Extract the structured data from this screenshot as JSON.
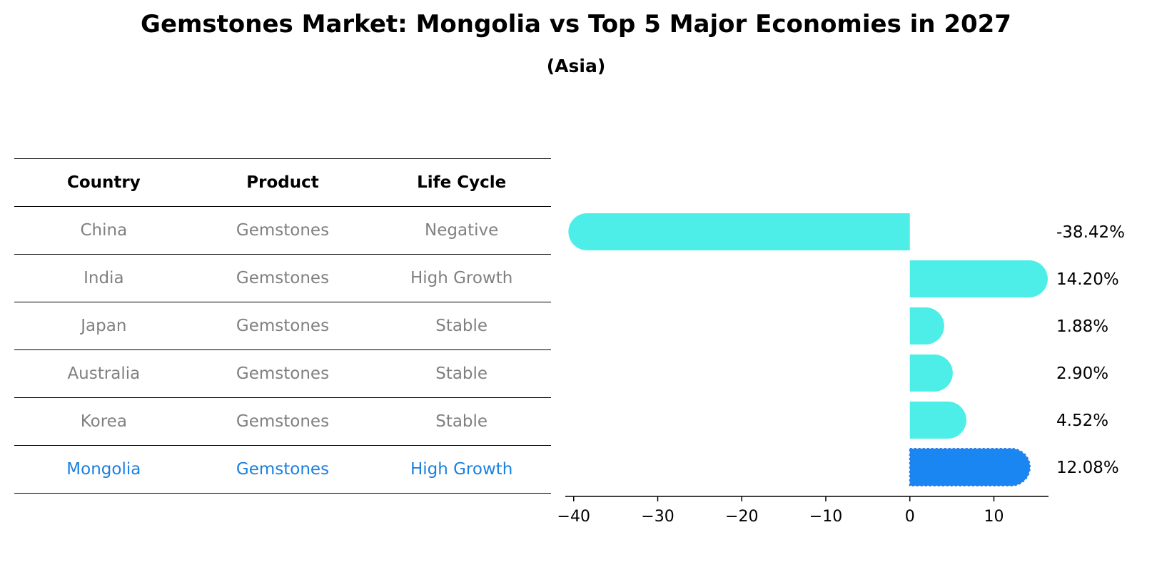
{
  "title": "Gemstones Market: Mongolia vs Top 5 Major Economies in 2027",
  "subtitle": "(Asia)",
  "table": {
    "headers": [
      "Country",
      "Product",
      "Life Cycle"
    ],
    "rows": [
      {
        "country": "China",
        "product": "Gemstones",
        "life_cycle": "Negative"
      },
      {
        "country": "India",
        "product": "Gemstones",
        "life_cycle": "High Growth"
      },
      {
        "country": "Japan",
        "product": "Gemstones",
        "life_cycle": "Stable"
      },
      {
        "country": "Australia",
        "product": "Gemstones",
        "life_cycle": "Stable"
      },
      {
        "country": "Korea",
        "product": "Gemstones",
        "life_cycle": "Stable"
      },
      {
        "country": "Mongolia",
        "product": "Gemstones",
        "life_cycle": "High Growth"
      }
    ]
  },
  "chart_data": {
    "type": "bar",
    "orientation": "horizontal",
    "categories": [
      "China",
      "India",
      "Japan",
      "Australia",
      "Korea",
      "Mongolia"
    ],
    "values": [
      -38.42,
      14.2,
      1.88,
      2.9,
      4.52,
      12.08
    ],
    "value_labels": [
      "-38.42%",
      "14.20%",
      "1.88%",
      "2.90%",
      "4.52%",
      "12.08%"
    ],
    "xticks": [
      -40,
      -30,
      -20,
      -10,
      0,
      10
    ],
    "xtick_labels": [
      "−40",
      "−30",
      "−20",
      "−10",
      "0",
      "10"
    ],
    "xlim": [
      -41,
      16.5
    ],
    "grid": false,
    "highlight_category": "Mongolia",
    "colors": {
      "default": "#4deee8",
      "highlight": "#1a86f2",
      "table_text": "#808080",
      "table_highlight_text": "#1a80e0"
    }
  }
}
